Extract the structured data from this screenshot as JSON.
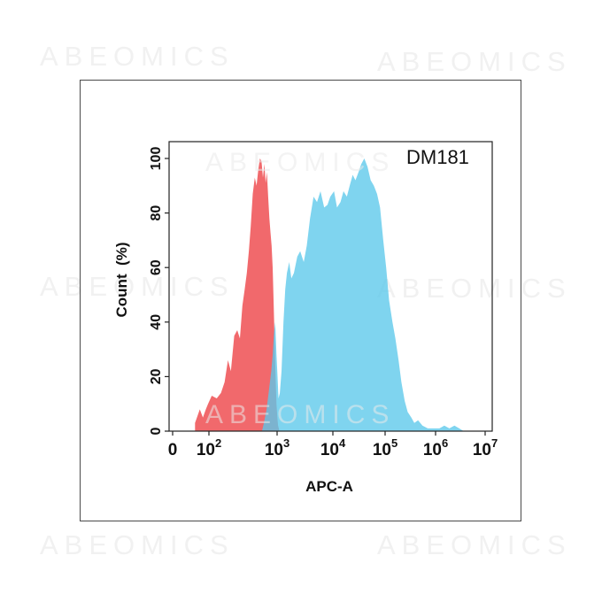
{
  "watermark": "ABEOMICS",
  "chart_data": {
    "type": "area",
    "title": "DM181",
    "xlabel": "APC-A",
    "ylabel": "Count  (%)",
    "x_scale": "log",
    "ylim": [
      0,
      100
    ],
    "y_ticks": [
      "0",
      "20",
      "40",
      "60",
      "80",
      "100"
    ],
    "x_ticks": [
      {
        "value": 0,
        "base": "0",
        "exp": ""
      },
      {
        "value": 100,
        "base": "10",
        "exp": "2"
      },
      {
        "value": 1000,
        "base": "10",
        "exp": "3"
      },
      {
        "value": 10000,
        "base": "10",
        "exp": "4"
      },
      {
        "value": 100000,
        "base": "10",
        "exp": "5"
      },
      {
        "value": 1000000,
        "base": "10",
        "exp": "6"
      },
      {
        "value": 10000000,
        "base": "10",
        "exp": "7"
      }
    ],
    "grid": false,
    "series": [
      {
        "color": "#f0595c",
        "points": [
          [
            20,
            3
          ],
          [
            35,
            8
          ],
          [
            50,
            5
          ],
          [
            70,
            8
          ],
          [
            90,
            10
          ],
          [
            110,
            13
          ],
          [
            130,
            12
          ],
          [
            150,
            14
          ],
          [
            170,
            18
          ],
          [
            190,
            26
          ],
          [
            210,
            22
          ],
          [
            235,
            35
          ],
          [
            260,
            37
          ],
          [
            285,
            34
          ],
          [
            310,
            46
          ],
          [
            335,
            52
          ],
          [
            360,
            58
          ],
          [
            385,
            66
          ],
          [
            410,
            75
          ],
          [
            440,
            87
          ],
          [
            470,
            93
          ],
          [
            500,
            90
          ],
          [
            530,
            96
          ],
          [
            560,
            100
          ],
          [
            590,
            99
          ],
          [
            620,
            93
          ],
          [
            650,
            98
          ],
          [
            680,
            91
          ],
          [
            710,
            95
          ],
          [
            740,
            86
          ],
          [
            770,
            78
          ],
          [
            800,
            73
          ],
          [
            830,
            68
          ],
          [
            860,
            60
          ],
          [
            890,
            47
          ],
          [
            920,
            33
          ],
          [
            950,
            20
          ],
          [
            980,
            10
          ],
          [
            1010,
            5
          ],
          [
            1040,
            2
          ],
          [
            1070,
            1
          ],
          [
            1100,
            0
          ]
        ]
      },
      {
        "color": "#5bc8ea",
        "points": [
          [
            600,
            0
          ],
          [
            640,
            3
          ],
          [
            700,
            8
          ],
          [
            760,
            15
          ],
          [
            820,
            22
          ],
          [
            860,
            28
          ],
          [
            900,
            36
          ],
          [
            940,
            40
          ],
          [
            980,
            28
          ],
          [
            1020,
            20
          ],
          [
            1060,
            12
          ],
          [
            1120,
            14
          ],
          [
            1200,
            22
          ],
          [
            1300,
            40
          ],
          [
            1400,
            52
          ],
          [
            1500,
            58
          ],
          [
            1650,
            62
          ],
          [
            1800,
            56
          ],
          [
            2000,
            58
          ],
          [
            2300,
            64
          ],
          [
            2600,
            66
          ],
          [
            3000,
            62
          ],
          [
            3400,
            68
          ],
          [
            3900,
            78
          ],
          [
            4500,
            86
          ],
          [
            5200,
            84
          ],
          [
            6000,
            88
          ],
          [
            7000,
            82
          ],
          [
            8000,
            83
          ],
          [
            9000,
            86
          ],
          [
            10500,
            88
          ],
          [
            12000,
            82
          ],
          [
            14000,
            84
          ],
          [
            16000,
            88
          ],
          [
            18500,
            86
          ],
          [
            21000,
            90
          ],
          [
            24000,
            94
          ],
          [
            27000,
            92
          ],
          [
            31000,
            95
          ],
          [
            35000,
            98
          ],
          [
            40000,
            100
          ],
          [
            46000,
            97
          ],
          [
            53000,
            92
          ],
          [
            61000,
            90
          ],
          [
            70000,
            87
          ],
          [
            80000,
            82
          ],
          [
            92000,
            70
          ],
          [
            105000,
            60
          ],
          [
            120000,
            48
          ],
          [
            140000,
            40
          ],
          [
            160000,
            34
          ],
          [
            185000,
            26
          ],
          [
            210000,
            18
          ],
          [
            245000,
            11
          ],
          [
            280000,
            7
          ],
          [
            330000,
            5
          ],
          [
            380000,
            3
          ],
          [
            450000,
            4
          ],
          [
            550000,
            2
          ],
          [
            700000,
            1
          ],
          [
            900000,
            1
          ],
          [
            1200000,
            1
          ],
          [
            1500000,
            2
          ],
          [
            1900000,
            1
          ],
          [
            2400000,
            2
          ],
          [
            3000000,
            1
          ],
          [
            3700000,
            0
          ]
        ]
      }
    ]
  }
}
